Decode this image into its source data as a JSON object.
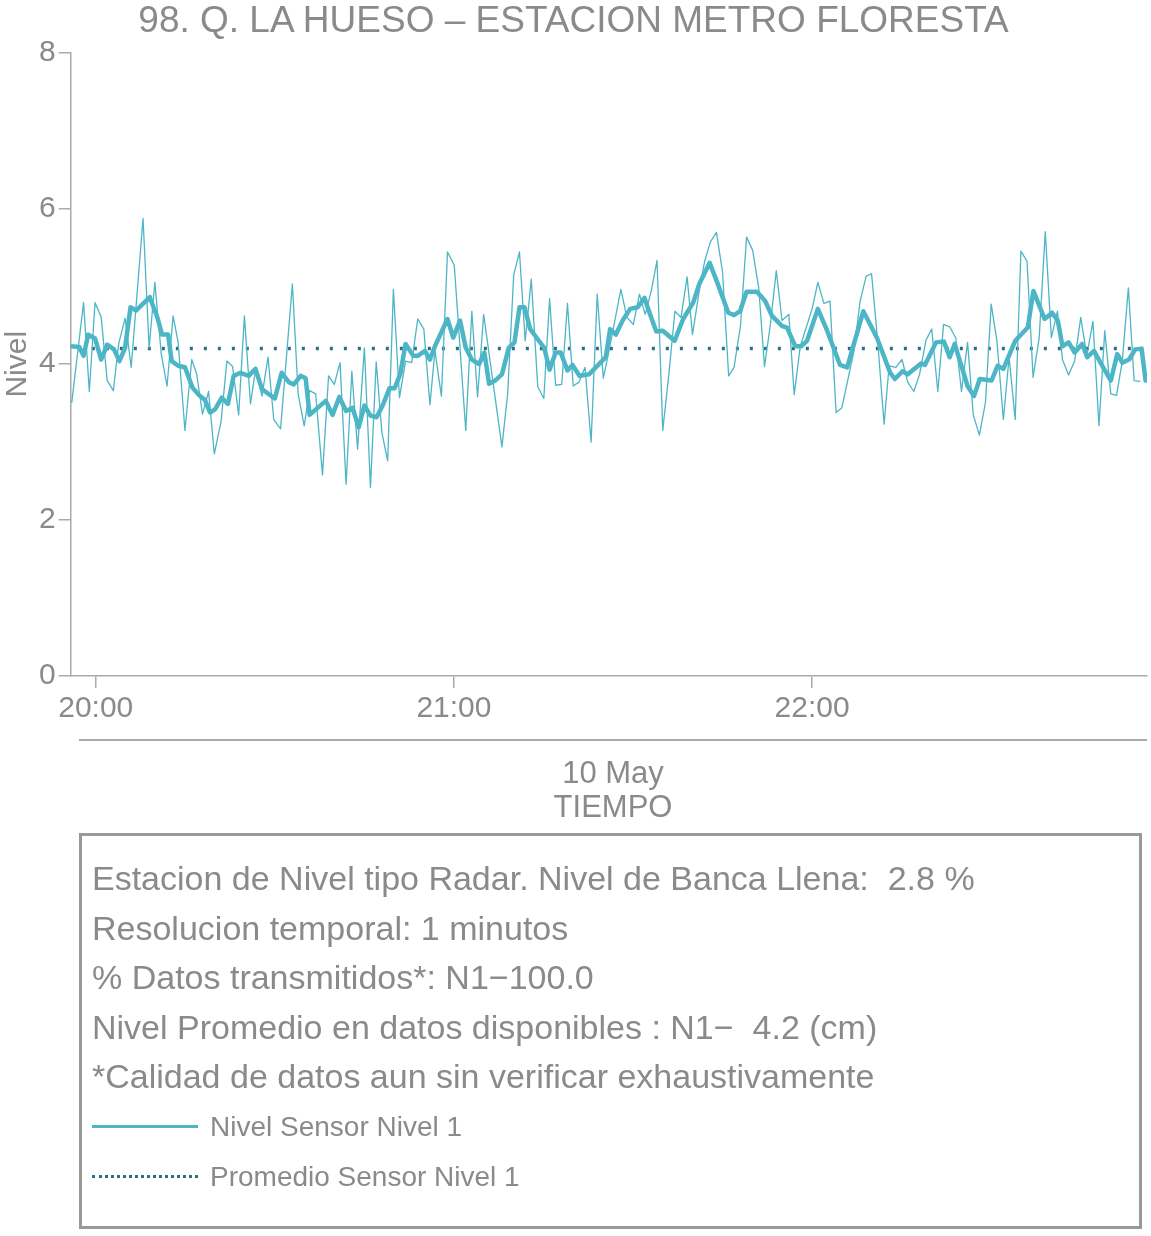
{
  "chart_data": {
    "type": "line",
    "title": "98. Q. LA HUESO – ESTACION METRO FLORESTA",
    "xlabel": "TIEMPO",
    "ylabel": "Nivel",
    "annotations": [
      "10 May",
      "Estacion de Nivel tipo Radar. Nivel de Banca Llena:  2.8 %",
      "Resolucion temporal: 1 minutos",
      "% Datos transmitidos*: N1−100.0",
      "Nivel Promedio en datos disponibles : N1−  4.2 (cm)",
      "*Calidad de datos aun sin verificar exhaustivamente"
    ],
    "xlim": [
      19.93,
      22.935
    ],
    "xticks": [
      {
        "value": 20,
        "label": "20:00"
      },
      {
        "value": 21,
        "label": "21:00"
      },
      {
        "value": 22,
        "label": "22:00"
      }
    ],
    "ylim": [
      0,
      8
    ],
    "yticks": [
      0,
      2,
      4,
      6,
      8
    ],
    "grid": false,
    "legend": "bottom",
    "series": [
      {
        "name": "Nivel Sensor Nivel 1",
        "color": "#4db6c6",
        "x": [
          19.933,
          19.966,
          19.982,
          19.998,
          20.015,
          20.032,
          20.049,
          20.064,
          20.082,
          20.099,
          20.132,
          20.149,
          20.165,
          20.183,
          20.199,
          20.216,
          20.23,
          20.249,
          20.268,
          20.282,
          20.298,
          20.315,
          20.331,
          20.35,
          20.366,
          20.382,
          20.399,
          20.415,
          20.432,
          20.447,
          20.464,
          20.481,
          20.497,
          20.516,
          20.549,
          20.565,
          20.582,
          20.597,
          20.614,
          20.633,
          20.65,
          20.666,
          20.682,
          20.699,
          20.715,
          20.731,
          20.75,
          20.767,
          20.783,
          20.799,
          20.815,
          20.831,
          20.848,
          20.865,
          20.882,
          20.899,
          20.916,
          20.933,
          20.947,
          20.965,
          20.982,
          21.001,
          21.033,
          21.05,
          21.066,
          21.083,
          21.134,
          21.15,
          21.167,
          21.183,
          21.199,
          21.216,
          21.234,
          21.251,
          21.267,
          21.284,
          21.301,
          21.317,
          21.333,
          21.349,
          21.366,
          21.383,
          21.4,
          21.417,
          21.433,
          21.466,
          21.483,
          21.501,
          21.518,
          21.534,
          21.551,
          21.567,
          21.583,
          21.6,
          21.617,
          21.634,
          21.651,
          21.666,
          21.685,
          21.7,
          21.716,
          21.733,
          21.75,
          21.767,
          21.782,
          21.8,
          21.817,
          21.834,
          21.851,
          21.867,
          21.883,
          21.9,
          21.916,
          21.935,
          21.95,
          21.967,
          22.0,
          22.016,
          22.033,
          22.05,
          22.067,
          22.083,
          22.117,
          22.134,
          22.151,
          22.166,
          22.183,
          22.201,
          22.215,
          22.234,
          22.251,
          22.267,
          22.284,
          22.3,
          22.318,
          22.334,
          22.351,
          22.367,
          22.384,
          22.401,
          22.417,
          22.434,
          22.45,
          22.467,
          22.484,
          22.5,
          22.516,
          22.534,
          22.55,
          22.567,
          22.583,
          22.6,
          22.617,
          22.634,
          22.651,
          22.668,
          22.685,
          22.699,
          22.716,
          22.733,
          22.75,
          22.767,
          22.784,
          22.801,
          22.817,
          22.834,
          22.85,
          22.866,
          22.883,
          22.899,
          22.915
        ],
        "values": [
          3.51,
          4.79,
          3.65,
          4.79,
          4.61,
          3.79,
          3.66,
          4.26,
          4.59,
          3.96,
          5.87,
          4.21,
          5.05,
          4.13,
          3.72,
          4.62,
          4.28,
          3.15,
          4.06,
          3.87,
          3.36,
          3.65,
          2.85,
          3.27,
          4.04,
          3.97,
          3.35,
          4.62,
          3.49,
          3.96,
          3.59,
          4.09,
          3.29,
          3.17,
          5.03,
          3.62,
          3.21,
          3.66,
          3.62,
          2.58,
          3.85,
          3.74,
          4.02,
          2.46,
          3.91,
          2.91,
          4.21,
          2.42,
          4.03,
          3.12,
          2.76,
          4.96,
          3.57,
          4.04,
          4.02,
          4.58,
          4.45,
          3.48,
          4.17,
          3.59,
          5.44,
          5.27,
          3.15,
          4.68,
          3.58,
          4.64,
          2.94,
          3.62,
          5.15,
          5.44,
          4.3,
          5.09,
          3.71,
          3.56,
          4.84,
          3.73,
          3.74,
          4.78,
          3.72,
          3.77,
          3.96,
          3.0,
          4.9,
          3.82,
          4.17,
          4.96,
          4.6,
          4.51,
          4.9,
          4.64,
          4.94,
          5.33,
          3.15,
          3.87,
          4.68,
          4.6,
          5.12,
          4.38,
          4.94,
          5.32,
          5.57,
          5.69,
          5.18,
          3.85,
          3.96,
          4.49,
          5.63,
          5.46,
          4.98,
          3.97,
          4.49,
          5.2,
          4.56,
          4.64,
          3.61,
          4.23,
          4.71,
          5.05,
          4.78,
          4.81,
          3.38,
          3.44,
          4.17,
          4.81,
          5.13,
          5.16,
          4.3,
          3.23,
          3.98,
          3.96,
          4.06,
          3.77,
          3.65,
          3.87,
          4.31,
          4.45,
          3.65,
          4.51,
          4.48,
          4.34,
          3.65,
          4.28,
          3.35,
          3.09,
          3.51,
          4.77,
          4.3,
          3.29,
          4.09,
          3.29,
          5.45,
          5.32,
          3.83,
          4.34,
          5.7,
          4.34,
          4.68,
          4.06,
          3.86,
          4.04,
          4.6,
          4.11,
          4.55,
          3.21,
          4.43,
          3.62,
          3.6,
          4.04,
          4.98,
          3.79,
          3.78
        ]
      },
      {
        "color": "#4db6c6",
        "x": [
          19.931,
          19.954,
          19.966,
          19.979,
          19.998,
          20.015,
          20.032,
          20.051,
          20.066,
          20.082,
          20.097,
          20.113,
          20.151,
          20.172,
          20.185,
          20.202,
          20.212,
          20.23,
          20.249,
          20.27,
          20.287,
          20.305,
          20.319,
          20.333,
          20.352,
          20.369,
          20.385,
          20.404,
          20.427,
          20.446,
          20.464,
          20.5,
          20.519,
          20.539,
          20.553,
          20.572,
          20.586,
          20.597,
          20.642,
          20.661,
          20.68,
          20.699,
          20.717,
          20.734,
          20.75,
          20.767,
          20.784,
          20.801,
          20.82,
          20.834,
          20.85,
          20.865,
          20.886,
          20.9,
          20.919,
          20.933,
          20.947,
          20.965,
          20.982,
          20.998,
          21.017,
          21.033,
          21.05,
          21.07,
          21.085,
          21.098,
          21.115,
          21.134,
          21.153,
          21.169,
          21.183,
          21.197,
          21.213,
          21.234,
          21.252,
          21.267,
          21.284,
          21.298,
          21.317,
          21.331,
          21.351,
          21.377,
          21.405,
          21.424,
          21.436,
          21.452,
          21.471,
          21.492,
          21.513,
          21.532,
          21.546,
          21.565,
          21.583,
          21.616,
          21.64,
          21.668,
          21.685,
          21.714,
          21.735,
          21.766,
          21.782,
          21.799,
          21.817,
          21.846,
          21.869,
          21.888,
          21.916,
          21.93,
          21.953,
          21.969,
          21.986,
          22.016,
          22.042,
          22.078,
          22.098,
          22.143,
          22.181,
          22.218,
          22.231,
          22.253,
          22.267,
          22.304,
          22.315,
          22.346,
          22.368,
          22.384,
          22.398,
          22.434,
          22.452,
          22.468,
          22.501,
          22.518,
          22.534,
          22.567,
          22.602,
          22.618,
          22.649,
          22.67,
          22.686,
          22.699,
          22.716,
          22.733,
          22.754,
          22.768,
          22.787,
          22.81,
          22.834,
          22.852,
          22.866,
          22.885,
          22.902,
          22.92,
          22.931
        ],
        "values": [
          4.23,
          4.22,
          4.11,
          4.38,
          4.33,
          4.06,
          4.25,
          4.19,
          4.04,
          4.21,
          4.73,
          4.69,
          4.86,
          4.6,
          4.38,
          4.38,
          4.04,
          3.98,
          3.96,
          3.7,
          3.61,
          3.54,
          3.38,
          3.42,
          3.57,
          3.49,
          3.85,
          3.89,
          3.85,
          3.94,
          3.68,
          3.56,
          3.89,
          3.77,
          3.74,
          3.85,
          3.82,
          3.35,
          3.53,
          3.35,
          3.58,
          3.4,
          3.44,
          3.19,
          3.47,
          3.34,
          3.32,
          3.47,
          3.69,
          3.69,
          3.87,
          4.26,
          4.11,
          4.11,
          4.17,
          4.06,
          4.23,
          4.41,
          4.58,
          4.34,
          4.56,
          4.21,
          4.06,
          4.0,
          4.15,
          3.75,
          3.79,
          3.87,
          4.21,
          4.28,
          4.73,
          4.73,
          4.45,
          4.32,
          4.21,
          3.93,
          4.15,
          4.15,
          3.92,
          3.99,
          3.85,
          3.87,
          4.0,
          4.09,
          4.45,
          4.38,
          4.56,
          4.71,
          4.73,
          4.85,
          4.66,
          4.42,
          4.43,
          4.3,
          4.58,
          4.79,
          5.03,
          5.3,
          5.05,
          4.66,
          4.63,
          4.68,
          4.93,
          4.93,
          4.81,
          4.62,
          4.49,
          4.47,
          4.23,
          4.23,
          4.3,
          4.71,
          4.43,
          3.99,
          3.96,
          4.68,
          4.34,
          3.89,
          3.81,
          3.91,
          3.87,
          4.01,
          3.99,
          4.28,
          4.29,
          4.09,
          4.26,
          3.72,
          3.59,
          3.81,
          3.79,
          3.98,
          3.94,
          4.3,
          4.47,
          4.94,
          4.58,
          4.66,
          4.56,
          4.23,
          4.28,
          4.15,
          4.26,
          4.09,
          4.17,
          3.98,
          3.79,
          4.13,
          4.02,
          4.06,
          4.19,
          4.2,
          3.79
        ]
      },
      {
        "name": "Promedio Sensor Nivel 1",
        "color": "#2c6f84",
        "line_style": "dotted",
        "x": [
          19.95,
          22.92
        ],
        "values": [
          4.2,
          4.2
        ]
      }
    ]
  }
}
